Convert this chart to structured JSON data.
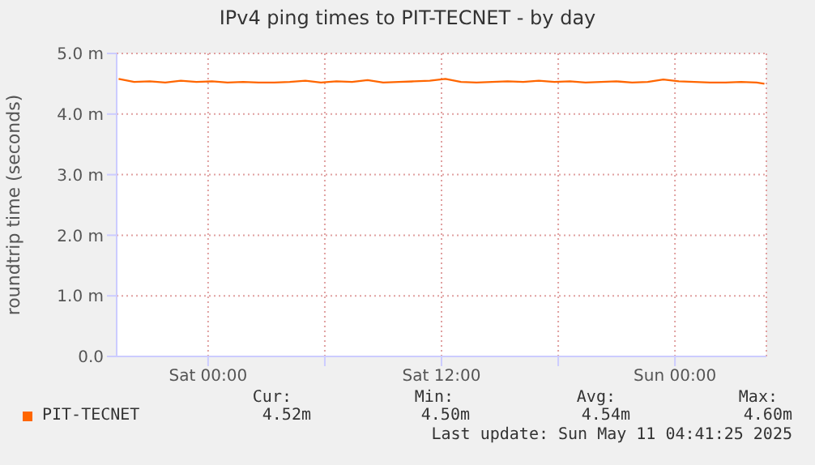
{
  "chart_data": {
    "type": "line",
    "title": "IPv4 ping times to PIT-TECNET - by day",
    "ylabel": "roundtrip time (seconds)",
    "x": [
      "2025-05-09T19:24",
      "2025-05-09T20:12",
      "2025-05-09T21:00",
      "2025-05-09T21:48",
      "2025-05-09T22:36",
      "2025-05-09T23:24",
      "2025-05-10T00:12",
      "2025-05-10T01:00",
      "2025-05-10T01:48",
      "2025-05-10T02:36",
      "2025-05-10T03:24",
      "2025-05-10T04:12",
      "2025-05-10T05:00",
      "2025-05-10T05:48",
      "2025-05-10T06:36",
      "2025-05-10T07:24",
      "2025-05-10T08:12",
      "2025-05-10T09:00",
      "2025-05-10T09:48",
      "2025-05-10T10:36",
      "2025-05-10T11:24",
      "2025-05-10T12:12",
      "2025-05-10T13:00",
      "2025-05-10T13:48",
      "2025-05-10T14:36",
      "2025-05-10T15:24",
      "2025-05-10T16:12",
      "2025-05-10T17:00",
      "2025-05-10T17:48",
      "2025-05-10T18:36",
      "2025-05-10T19:24",
      "2025-05-10T20:12",
      "2025-05-10T21:00",
      "2025-05-10T21:48",
      "2025-05-10T22:36",
      "2025-05-10T23:24",
      "2025-05-11T00:12",
      "2025-05-11T01:00",
      "2025-05-11T01:48",
      "2025-05-11T02:36",
      "2025-05-11T03:24",
      "2025-05-11T04:12",
      "2025-05-11T04:36"
    ],
    "series": [
      {
        "name": "PIT-TECNET",
        "color": "#ff6600",
        "values": [
          4.58,
          4.53,
          4.54,
          4.52,
          4.55,
          4.53,
          4.54,
          4.52,
          4.53,
          4.52,
          4.52,
          4.53,
          4.55,
          4.52,
          4.54,
          4.53,
          4.56,
          4.52,
          4.53,
          4.54,
          4.55,
          4.58,
          4.53,
          4.52,
          4.53,
          4.54,
          4.53,
          4.55,
          4.53,
          4.54,
          4.52,
          4.53,
          4.54,
          4.52,
          4.53,
          4.57,
          4.54,
          4.53,
          4.52,
          4.52,
          4.53,
          4.52,
          4.5
        ]
      }
    ],
    "xlim": [
      "2025-05-09T19:18",
      "2025-05-11T04:42"
    ],
    "xticks": [
      {
        "value": "2025-05-10T00:00",
        "label": "Sat 00:00"
      },
      {
        "value": "2025-05-10T06:00",
        "label": null
      },
      {
        "value": "2025-05-10T12:00",
        "label": "Sat 12:00"
      },
      {
        "value": "2025-05-10T18:00",
        "label": null
      },
      {
        "value": "2025-05-11T00:00",
        "label": "Sun 00:00"
      }
    ],
    "ylim": [
      0,
      5
    ],
    "yticks": [
      {
        "value": 0,
        "label": "0.0"
      },
      {
        "value": 1,
        "label": "1.0 m"
      },
      {
        "value": 2,
        "label": "2.0 m"
      },
      {
        "value": 3,
        "label": "3.0 m"
      },
      {
        "value": 4,
        "label": "4.0 m"
      },
      {
        "value": 5,
        "label": "5.0 m"
      }
    ],
    "grid": true,
    "legend": "bottom left",
    "marker": "none",
    "line_style": "solid",
    "annotations": [
      "Cur:",
      "Min:",
      "Avg:",
      "Max:",
      "4.52m",
      "4.50m",
      "4.54m",
      "4.60m",
      "Last update: Sun May 11 04:41:25 2025"
    ]
  }
}
